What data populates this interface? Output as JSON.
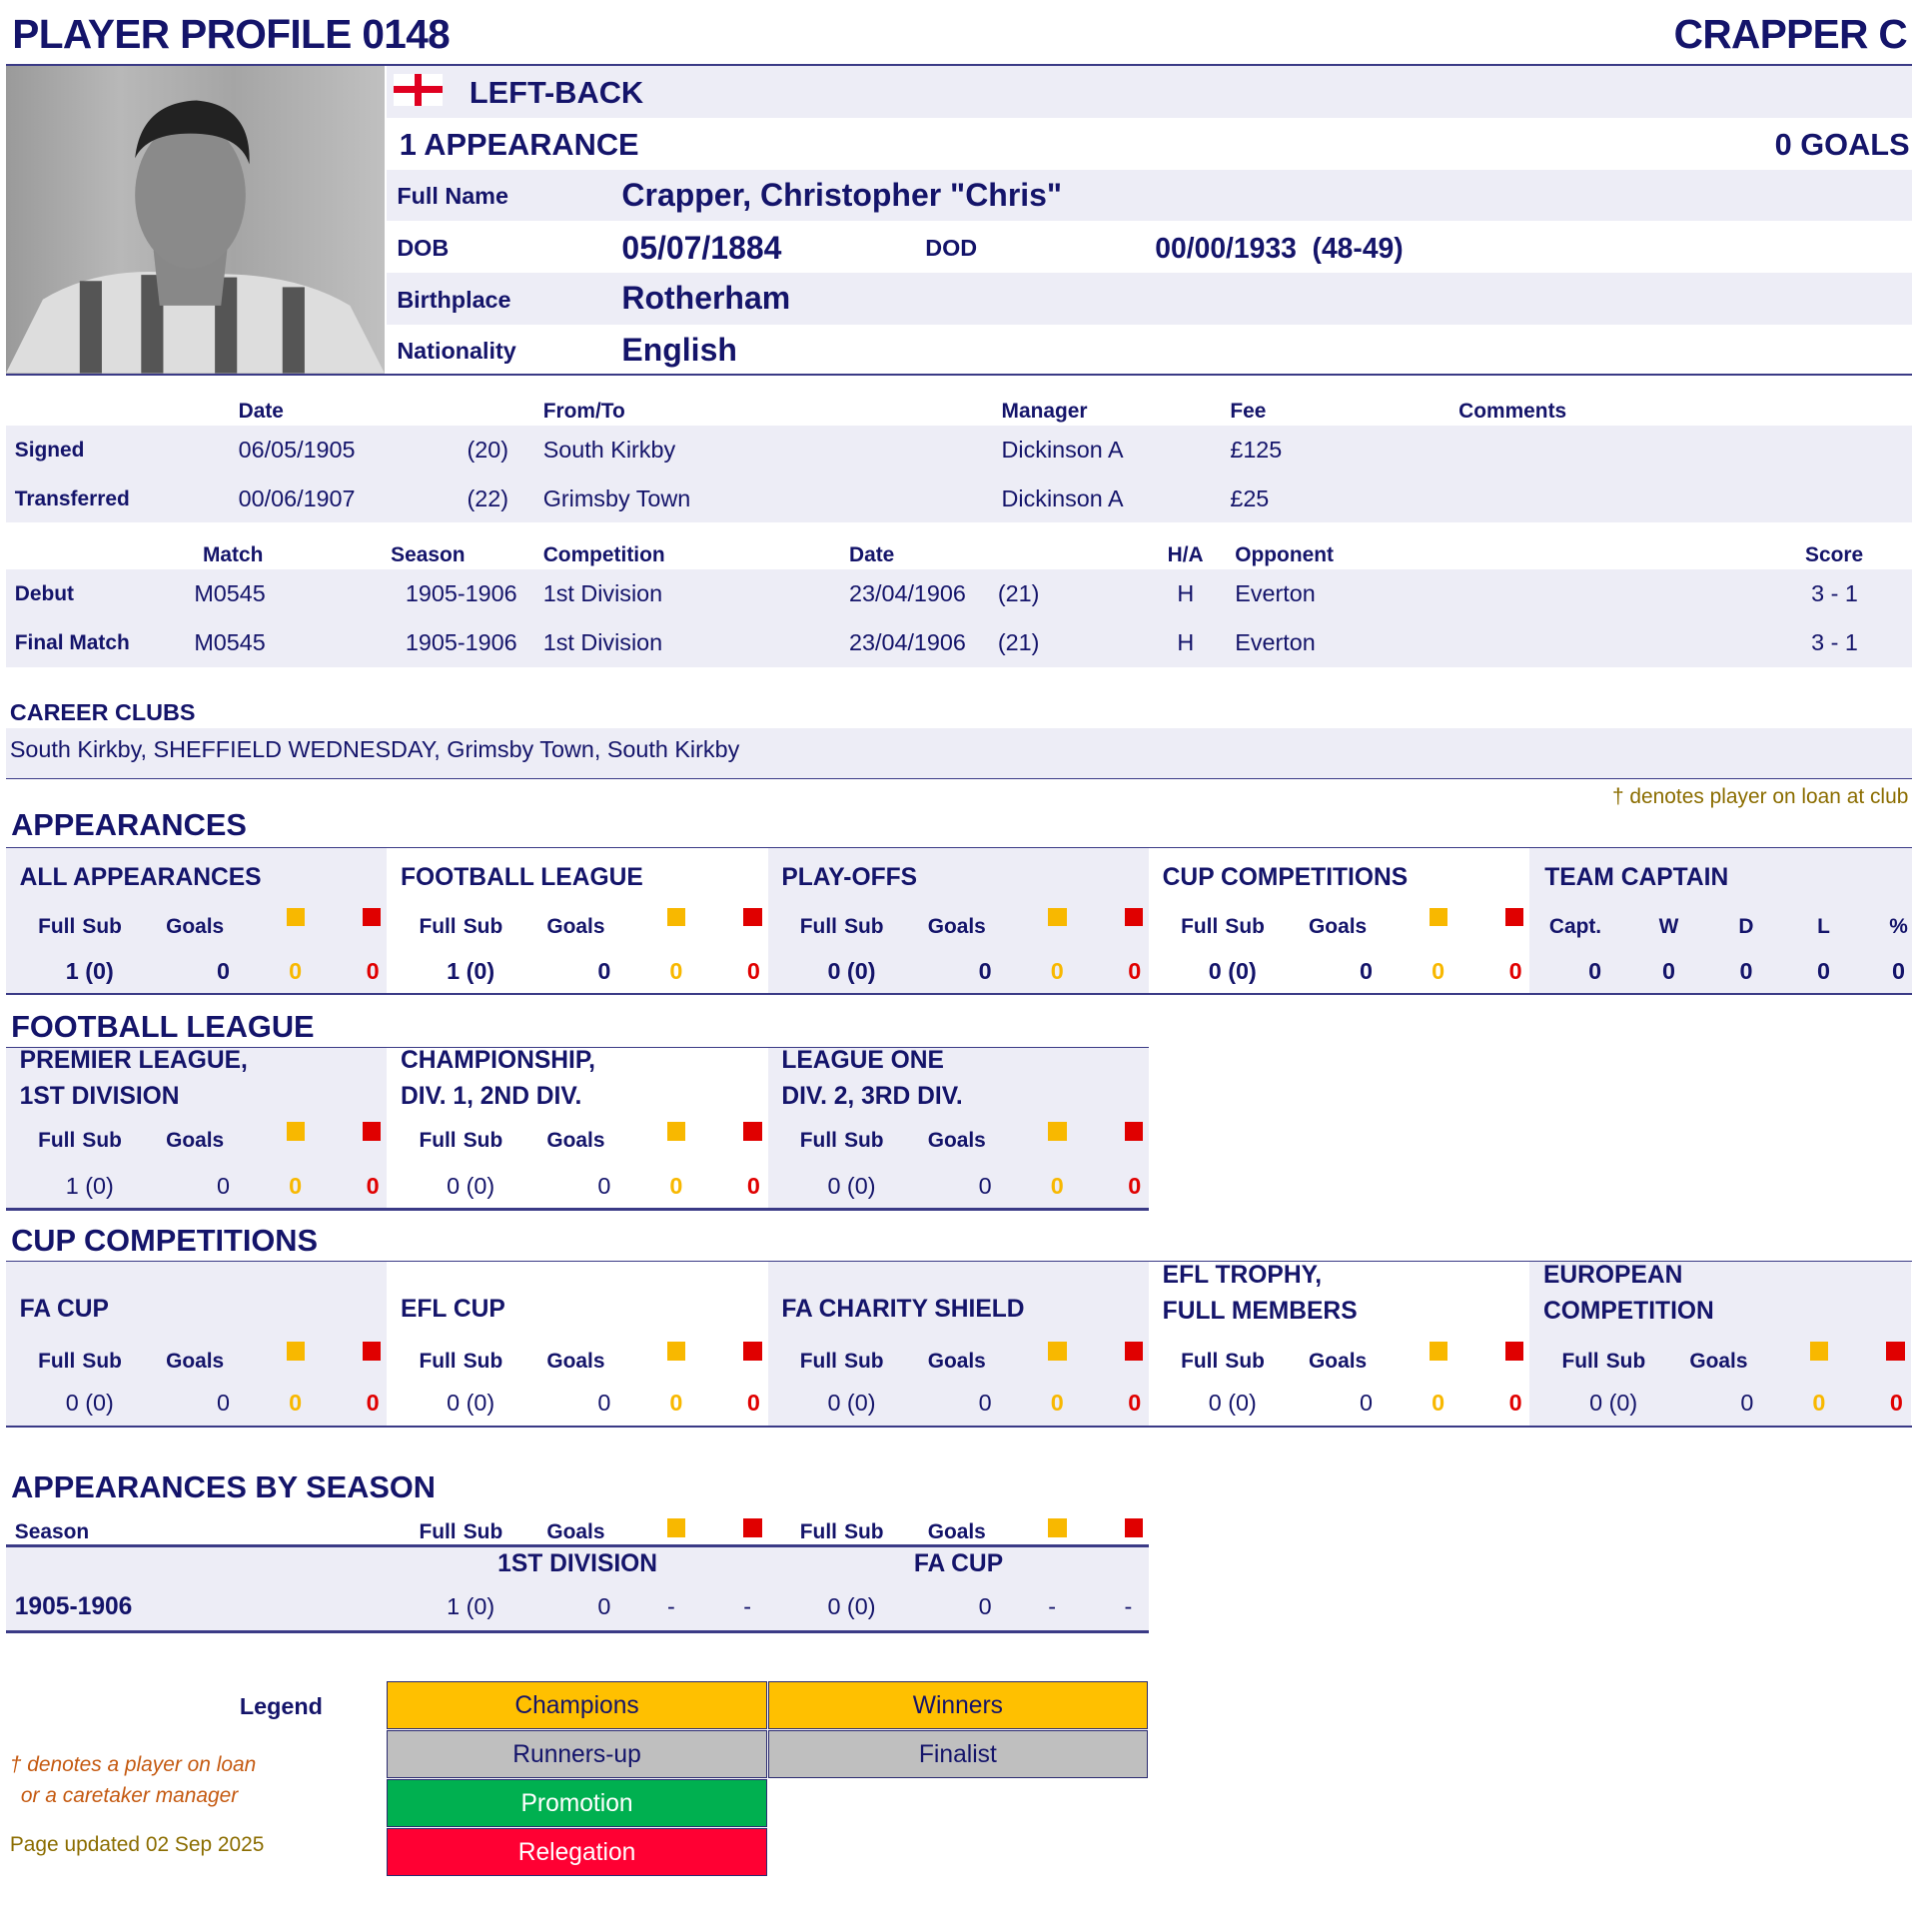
{
  "header": {
    "title": "PLAYER PROFILE 0148",
    "name": "CRAPPER C"
  },
  "profile": {
    "flag": "england-flag-icon",
    "position": "LEFT-BACK",
    "appearances": "1 APPEARANCE",
    "goals": "0 GOALS",
    "full_name_label": "Full Name",
    "full_name": "Crapper, Christopher \"Chris\"",
    "dob_label": "DOB",
    "dob": "05/07/1884",
    "dod_label": "DOD",
    "dod": "00/00/1933  (48-49)",
    "birthplace_label": "Birthplace",
    "birthplace": "Rotherham",
    "nationality_label": "Nationality",
    "nationality": "English"
  },
  "transfers": {
    "headers": {
      "date": "Date",
      "club": "From/To",
      "manager": "Manager",
      "fee": "Fee",
      "comments": "Comments"
    },
    "rows": [
      {
        "label": "Signed",
        "date": "06/05/1905",
        "age": "(20)",
        "club": "South Kirkby",
        "manager": "Dickinson A",
        "fee": "£125"
      },
      {
        "label": "Transferred",
        "date": "00/06/1907",
        "age": "(22)",
        "club": "Grimsby Town",
        "manager": "Dickinson A",
        "fee": "£25"
      }
    ]
  },
  "matches": {
    "headers": {
      "match": "Match",
      "season": "Season",
      "competition": "Competition",
      "date": "Date",
      "ha": "H/A",
      "opponent": "Opponent",
      "score": "Score"
    },
    "rows": [
      {
        "label": "Debut",
        "match": "M0545",
        "season": "1905-1906",
        "competition": "1st Division",
        "date": "23/04/1906",
        "age": "(21)",
        "ha": "H",
        "opponent": "Everton",
        "score": "3 - 1"
      },
      {
        "label": "Final Match",
        "match": "M0545",
        "season": "1905-1906",
        "competition": "1st Division",
        "date": "23/04/1906",
        "age": "(21)",
        "ha": "H",
        "opponent": "Everton",
        "score": "3 - 1"
      }
    ]
  },
  "career": {
    "title": "CAREER CLUBS",
    "clubs": "South Kirkby, SHEFFIELD WEDNESDAY, Grimsby Town, South Kirkby"
  },
  "loan_note": "† denotes player on loan at club",
  "stat_headers": {
    "full": "Full",
    "sub": "Sub",
    "goals": "Goals"
  },
  "appearances": {
    "title": "APPEARANCES",
    "blocks": [
      {
        "title": [
          "ALL APPEARANCES"
        ],
        "full_sub": "1 (0)",
        "goals": "0",
        "yellow": "0",
        "red": "0"
      },
      {
        "title": [
          "FOOTBALL LEAGUE"
        ],
        "full_sub": "1 (0)",
        "goals": "0",
        "yellow": "0",
        "red": "0"
      },
      {
        "title": [
          "PLAY-OFFS"
        ],
        "full_sub": "0 (0)",
        "goals": "0",
        "yellow": "0",
        "red": "0"
      },
      {
        "title": [
          "CUP COMPETITIONS"
        ],
        "full_sub": "0 (0)",
        "goals": "0",
        "yellow": "0",
        "red": "0"
      }
    ],
    "captain": {
      "title": "TEAM CAPTAIN",
      "headers": [
        "Capt.",
        "W",
        "D",
        "L",
        "%"
      ],
      "values": [
        "0",
        "0",
        "0",
        "0",
        "0"
      ]
    }
  },
  "football_league": {
    "title": "FOOTBALL LEAGUE",
    "blocks": [
      {
        "title": [
          "PREMIER LEAGUE,",
          "1ST DIVISION"
        ],
        "full_sub": "1 (0)",
        "goals": "0",
        "yellow": "0",
        "red": "0"
      },
      {
        "title": [
          "CHAMPIONSHIP,",
          "DIV. 1, 2ND DIV."
        ],
        "full_sub": "0 (0)",
        "goals": "0",
        "yellow": "0",
        "red": "0"
      },
      {
        "title": [
          "LEAGUE ONE",
          "DIV. 2, 3RD DIV."
        ],
        "full_sub": "0 (0)",
        "goals": "0",
        "yellow": "0",
        "red": "0"
      }
    ]
  },
  "cup_competitions": {
    "title": "CUP COMPETITIONS",
    "blocks": [
      {
        "title": [
          "FA CUP"
        ],
        "full_sub": "0 (0)",
        "goals": "0",
        "yellow": "0",
        "red": "0"
      },
      {
        "title": [
          "EFL CUP"
        ],
        "full_sub": "0 (0)",
        "goals": "0",
        "yellow": "0",
        "red": "0"
      },
      {
        "title": [
          "FA CHARITY SHIELD"
        ],
        "full_sub": "0 (0)",
        "goals": "0",
        "yellow": "0",
        "red": "0"
      },
      {
        "title": [
          "EFL TROPHY,",
          "FULL MEMBERS"
        ],
        "full_sub": "0 (0)",
        "goals": "0",
        "yellow": "0",
        "red": "0"
      },
      {
        "title": [
          "EUROPEAN",
          "COMPETITION"
        ],
        "full_sub": "0 (0)",
        "goals": "0",
        "yellow": "0",
        "red": "0"
      }
    ]
  },
  "by_season": {
    "title": "APPEARANCES BY SEASON",
    "season_label": "Season",
    "competitions": [
      "1ST DIVISION",
      "FA CUP"
    ],
    "rows": [
      {
        "season": "1905-1906",
        "cells": [
          {
            "full_sub": "1 (0)",
            "goals": "0",
            "yellow": "-",
            "red": "-"
          },
          {
            "full_sub": "0 (0)",
            "goals": "0",
            "yellow": "-",
            "red": "-"
          }
        ]
      }
    ]
  },
  "legend": {
    "label": "Legend",
    "items": [
      {
        "label": "Champions",
        "color": "#ffc000"
      },
      {
        "label": "Winners",
        "color": "#ffc000"
      },
      {
        "label": "Runners-up",
        "color": "#bfbfbf"
      },
      {
        "label": "Finalist",
        "color": "#bfbfbf"
      },
      {
        "label": "Promotion",
        "color": "#00b050"
      },
      {
        "label": "Relegation",
        "color": "#ff0033"
      }
    ],
    "loan_note_1": "† denotes a player on loan",
    "loan_note_2": "or a caretaker manager",
    "updated": "Page updated 02 Sep 2025"
  },
  "colors": {
    "navy": "#14146a",
    "band": "#ededf6",
    "yellow_card": "#f8b800",
    "red_card": "#e00000"
  }
}
